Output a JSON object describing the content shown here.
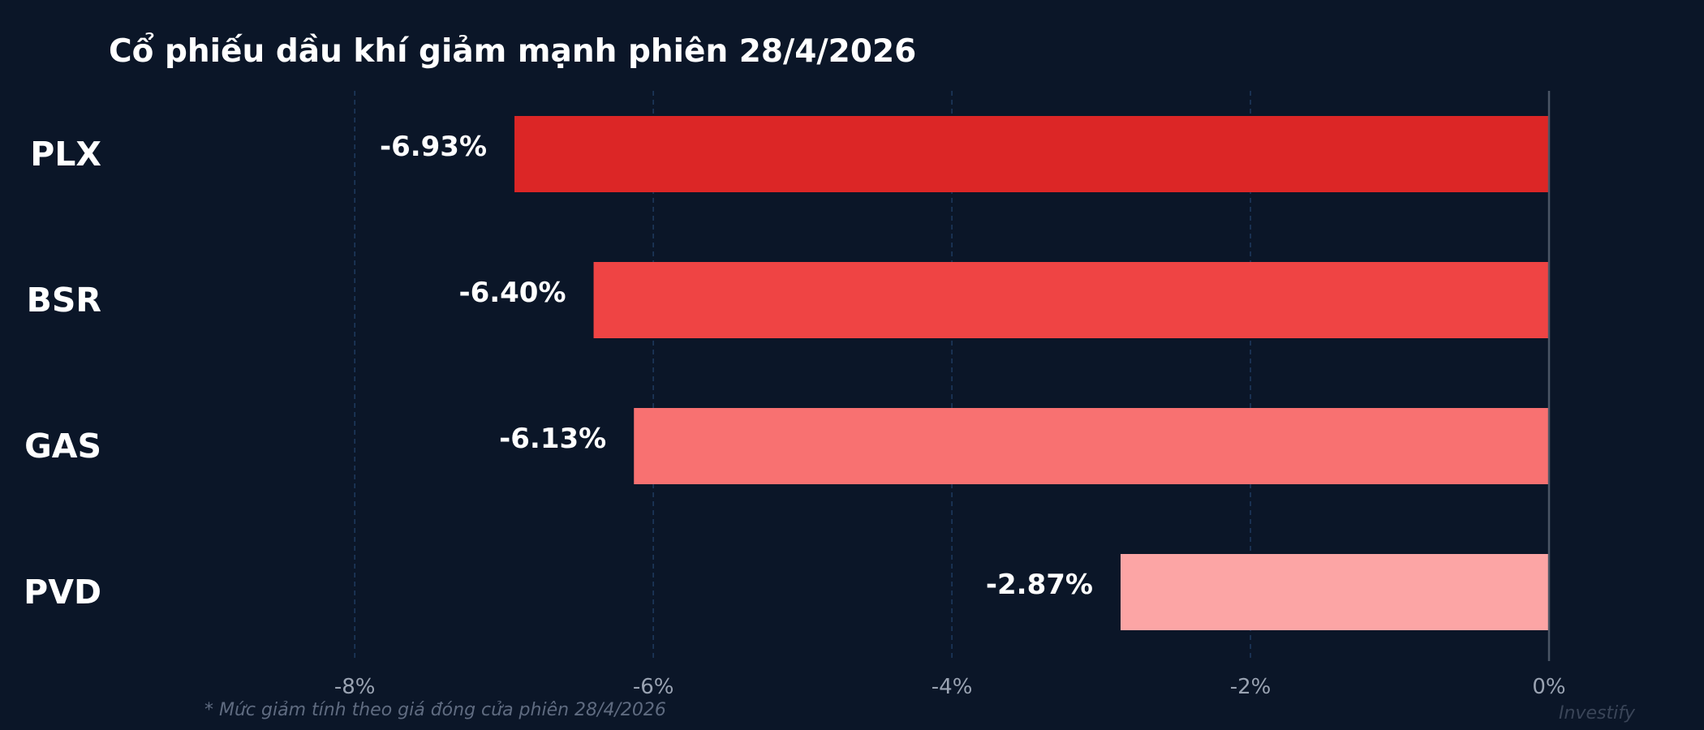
{
  "chart_data": {
    "type": "bar",
    "orientation": "horizontal",
    "title": "Cổ phiếu dầu khí giảm mạnh phiên 28/4/2026",
    "categories": [
      "PLX",
      "BSR",
      "GAS",
      "PVD"
    ],
    "values": [
      -6.93,
      -6.4,
      -6.13,
      -2.87
    ],
    "data_labels": [
      "-6.93%",
      "-6.40%",
      "-6.13%",
      "-2.87%"
    ],
    "bar_colors": [
      "#dc2626",
      "#ef4444",
      "#f87171",
      "#fca5a5"
    ],
    "xlim": [
      -8.8,
      0
    ],
    "x_ticks": [
      -8,
      -6,
      -4,
      -2,
      0
    ],
    "x_tick_labels": [
      "-8%",
      "-6%",
      "-4%",
      "-2%",
      "0%"
    ],
    "grid": "vertical dashed",
    "xlabel": "",
    "ylabel": ""
  },
  "footnote": "* Mức giảm tính theo giá đóng cửa phiên 28/4/2026",
  "watermark": "Investify",
  "colors": {
    "background": "#0b1628",
    "grid": "#1e3a5f",
    "zero_line": "#4b5565"
  }
}
